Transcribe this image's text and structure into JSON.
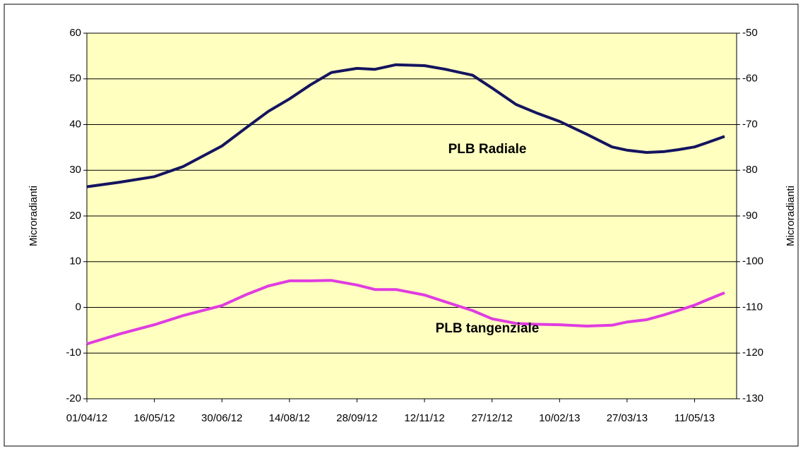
{
  "chart_data": {
    "type": "line",
    "x": [
      "01/04/12",
      "23/04/12",
      "16/05/12",
      "04/06/12",
      "30/06/12",
      "17/07/12",
      "31/07/12",
      "14/08/12",
      "28/08/12",
      "11/09/12",
      "28/09/12",
      "10/10/12",
      "24/10/12",
      "12/11/12",
      "26/11/12",
      "14/12/12",
      "27/12/12",
      "12/01/13",
      "26/01/13",
      "10/02/13",
      "28/02/13",
      "17/03/13",
      "27/03/13",
      "09/04/13",
      "21/04/13",
      "30/04/13",
      "11/05/13",
      "19/05/13",
      "31/05/13"
    ],
    "series": [
      {
        "name": "PLB Radiale",
        "color": "#14145f",
        "values": [
          26.4,
          27.4,
          28.6,
          30.8,
          35.3,
          39.5,
          42.9,
          45.6,
          48.7,
          51.4,
          52.3,
          52.1,
          53.1,
          52.9,
          52.1,
          50.8,
          48.0,
          44.4,
          42.5,
          40.7,
          37.9,
          35.1,
          34.4,
          33.9,
          34.1,
          34.5,
          35.1,
          36.0,
          37.4
        ]
      },
      {
        "name": "PLB tangenziale",
        "color": "#e03ce0",
        "values": [
          -8.0,
          -5.8,
          -3.8,
          -1.8,
          0.4,
          2.9,
          4.7,
          5.8,
          5.8,
          5.9,
          4.9,
          3.9,
          3.9,
          2.7,
          1.2,
          -0.7,
          -2.5,
          -3.5,
          -3.7,
          -3.8,
          -4.1,
          -3.9,
          -3.2,
          -2.7,
          -1.6,
          -0.7,
          0.5,
          1.6,
          3.2
        ]
      }
    ],
    "y_label": "Microradianti",
    "y2_label": "Microradianti",
    "xlim": [
      "01/04/12",
      "08/06/13"
    ],
    "xticks": [
      "01/04/12",
      "16/05/12",
      "30/06/12",
      "14/08/12",
      "28/09/12",
      "12/11/12",
      "27/12/12",
      "10/02/13",
      "27/03/13",
      "11/05/13"
    ],
    "ylim": [
      -20,
      60
    ],
    "yticks": [
      -20,
      -10,
      0,
      10,
      20,
      30,
      40,
      50,
      60
    ],
    "y2lim": [
      -130,
      -50
    ],
    "y2ticks": [
      -130,
      -120,
      -110,
      -100,
      -90,
      -80,
      -70,
      -60,
      -50
    ],
    "grid": true,
    "plot_background": "#ffffc0"
  }
}
